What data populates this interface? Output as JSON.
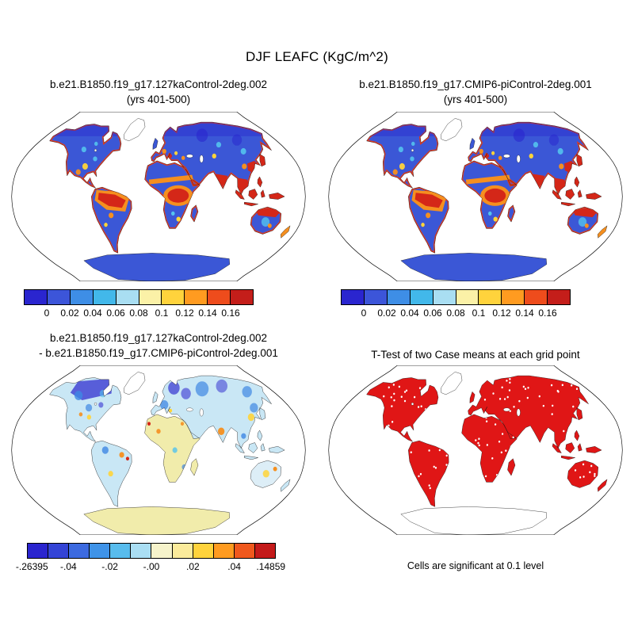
{
  "figure": {
    "title": "DJF LEAFC (KgC/m^2)"
  },
  "map_colors": {
    "ocean": "#ffffff",
    "outline": "#000000",
    "land_low": "#3b57d6",
    "coast_high": "#e13a1e",
    "hot": "#d42718",
    "warm": "#f58f1f",
    "yellow": "#ffd43a",
    "cyan": "#54c3ee",
    "dark_blue": "#2823cd",
    "mid_blue": "#3f87e3",
    "diff_cool_land": "#c9e7f5",
    "diff_warm_land": "#f1ecab",
    "diff_light_land": "#ddeef7",
    "ice": "#ffffff",
    "ttest_sig": "#e01616"
  },
  "chart_data": [
    {
      "panel": "top-left",
      "type": "heatmap",
      "projection": "robinson",
      "variable": "LEAFC",
      "season": "DJF",
      "units": "KgC/m^2",
      "title_line1": "b.e21.B1850.f19_g17.127kaControl-2deg.002",
      "title_line2": "(yrs 401-500)",
      "colorbar": {
        "colors": [
          "#2a25cf",
          "#3c55d9",
          "#3e8ee6",
          "#42b8ea",
          "#a9def2",
          "#fbf1a7",
          "#ffd33c",
          "#ff9b20",
          "#ee4c1c",
          "#c41e1a"
        ],
        "ticks": [
          {
            "label": "0",
            "pos": 0.1
          },
          {
            "label": "0.02",
            "pos": 0.2
          },
          {
            "label": "0.04",
            "pos": 0.3
          },
          {
            "label": "0.06",
            "pos": 0.4
          },
          {
            "label": "0.08",
            "pos": 0.5
          },
          {
            "label": "0.1",
            "pos": 0.6
          },
          {
            "label": "0.12",
            "pos": 0.7
          },
          {
            "label": "0.14",
            "pos": 0.8
          },
          {
            "label": "0.16",
            "pos": 0.9
          }
        ]
      },
      "visual_summary": "Global land mostly blue (0-0.06) with red/orange high values along tropical coasts, Amazon, central Africa, India, SE Asia and maritime continent; Antarctica uniform blue."
    },
    {
      "panel": "top-right",
      "type": "heatmap",
      "projection": "robinson",
      "variable": "LEAFC",
      "season": "DJF",
      "units": "KgC/m^2",
      "title_line1": "b.e21.B1850.f19_g17.CMIP6-piControl-2deg.001",
      "title_line2": "(yrs 401-500)",
      "colorbar": {
        "colors": [
          "#2a25cf",
          "#3c55d9",
          "#3e8ee6",
          "#42b8ea",
          "#a9def2",
          "#fbf1a7",
          "#ffd33c",
          "#ff9b20",
          "#ee4c1c",
          "#c41e1a"
        ],
        "ticks": [
          {
            "label": "0",
            "pos": 0.1
          },
          {
            "label": "0.02",
            "pos": 0.2
          },
          {
            "label": "0.04",
            "pos": 0.3
          },
          {
            "label": "0.06",
            "pos": 0.4
          },
          {
            "label": "0.08",
            "pos": 0.5
          },
          {
            "label": "0.1",
            "pos": 0.6
          },
          {
            "label": "0.12",
            "pos": 0.7
          },
          {
            "label": "0.14",
            "pos": 0.8
          },
          {
            "label": "0.16",
            "pos": 0.9
          }
        ]
      },
      "visual_summary": "Nearly identical pattern to the 127ka control case: blue interiors, red tropical/coastal maxima."
    },
    {
      "panel": "bottom-left",
      "type": "heatmap-difference",
      "projection": "robinson",
      "variable": "LEAFC difference",
      "units": "KgC/m^2",
      "title_line1": "b.e21.B1850.f19_g17.127kaControl-2deg.002",
      "title_line2": "- b.e21.B1850.f19_g17.CMIP6-piControl-2deg.001",
      "value_min": -0.26395,
      "value_max": 0.14859,
      "colorbar": {
        "colors": [
          "#2a25cf",
          "#3444d6",
          "#3c6ae0",
          "#3f93e8",
          "#58bced",
          "#aadef3",
          "#f6f3cb",
          "#fbeb9b",
          "#ffd33c",
          "#ff9b20",
          "#f0581d",
          "#c41a1a"
        ],
        "ticks": [
          {
            "label": "-.26395",
            "pos": 0.02
          },
          {
            "label": "-.04",
            "pos": 0.1667
          },
          {
            "label": "-.02",
            "pos": 0.3333
          },
          {
            "label": "-.00",
            "pos": 0.5
          },
          {
            "label": ".02",
            "pos": 0.6667
          },
          {
            "label": ".04",
            "pos": 0.8333
          },
          {
            "label": ".14859",
            "pos": 0.98
          }
        ]
      },
      "visual_summary": "Mostly pale blue/yellow small differences; dark blue negative patches across Canada, northern Europe and Siberia; scattered orange/red positives in tropics; Antarctica pale yellow."
    },
    {
      "panel": "bottom-right",
      "type": "significance-map",
      "projection": "robinson",
      "title_line1": "T-Test of two Case means at each grid point",
      "title_line2": "",
      "caption": "Cells are significant at 0.1 level",
      "significant_color": "#e01616",
      "visual_summary": "Almost all vegetated land cells significant (solid red) with scattered non-significant white cells; Greenland and Antarctica blank."
    }
  ]
}
